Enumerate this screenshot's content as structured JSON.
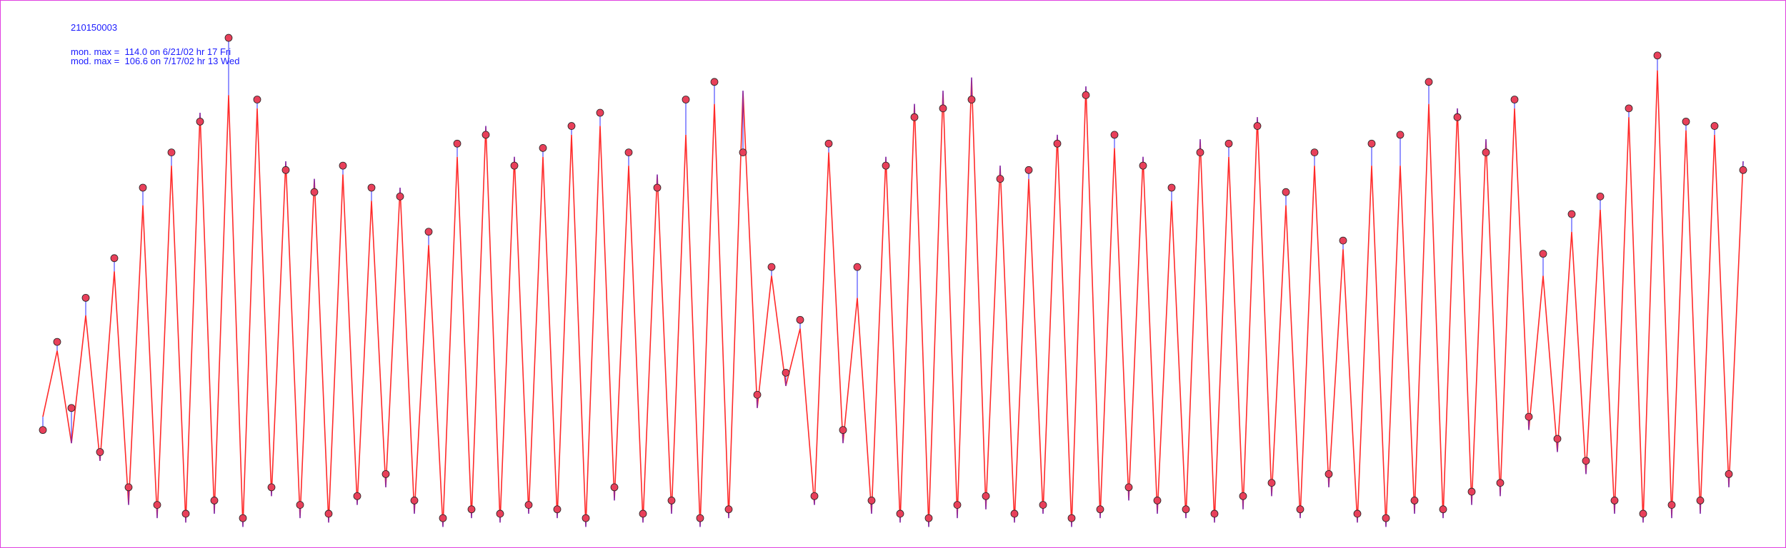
{
  "chart_data": {
    "type": "line",
    "title": "210150003",
    "annotations": [
      "mon. max =  114.0 on 6/21/02 hr 17 Fri",
      "mod. max =  106.6 on 7/17/02 hr 13 Wed"
    ],
    "ylim": [
      0,
      120
    ],
    "series": [
      {
        "color": "#ff2a2a",
        "values": [
          28,
          43,
          22,
          51,
          18,
          61,
          8,
          76,
          5,
          85,
          4,
          97,
          6,
          101,
          3,
          98,
          10,
          86,
          5,
          82,
          4,
          83,
          8,
          77,
          12,
          80,
          6,
          67,
          3,
          87,
          5,
          94,
          4,
          87,
          6,
          87,
          5,
          92,
          3,
          94,
          9,
          85,
          4,
          83,
          6,
          92,
          3,
          99,
          5,
          102,
          30,
          60,
          35,
          48,
          8,
          88,
          22,
          55,
          6,
          87,
          4,
          99,
          3,
          102,
          5,
          105,
          7,
          85,
          4,
          82,
          6,
          92,
          3,
          103,
          5,
          89,
          9,
          87,
          6,
          77,
          5,
          91,
          4,
          87,
          7,
          96,
          10,
          76,
          5,
          85,
          12,
          66,
          4,
          85,
          3,
          85,
          6,
          99,
          5,
          98,
          8,
          91,
          10,
          98,
          25,
          60,
          20,
          70,
          15,
          75,
          6,
          96,
          4,
          106.6,
          5,
          93,
          6,
          92,
          12,
          86
        ]
      },
      {
        "color": "#e8405a",
        "values": [
          25,
          45,
          30,
          55,
          20,
          64,
          12,
          80,
          8,
          88,
          6,
          95,
          9,
          114,
          5,
          100,
          12,
          84,
          8,
          79,
          6,
          85,
          10,
          80,
          15,
          78,
          9,
          70,
          5,
          90,
          7,
          92,
          6,
          85,
          8,
          89,
          7,
          94,
          5,
          97,
          12,
          88,
          6,
          80,
          9,
          100,
          5,
          104,
          7,
          88,
          33,
          62,
          38,
          50,
          10,
          90,
          25,
          62,
          9,
          85,
          6,
          96,
          5,
          98,
          8,
          100,
          10,
          82,
          6,
          84,
          8,
          90,
          5,
          101,
          7,
          92,
          12,
          85,
          9,
          80,
          7,
          88,
          6,
          90,
          10,
          94,
          13,
          79,
          7,
          88,
          15,
          68,
          6,
          90,
          5,
          92,
          9,
          104,
          7,
          96,
          11,
          88,
          13,
          100,
          28,
          65,
          23,
          74,
          18,
          78,
          9,
          98,
          6,
          110,
          8,
          95,
          9,
          94,
          15,
          84
        ]
      }
    ]
  }
}
